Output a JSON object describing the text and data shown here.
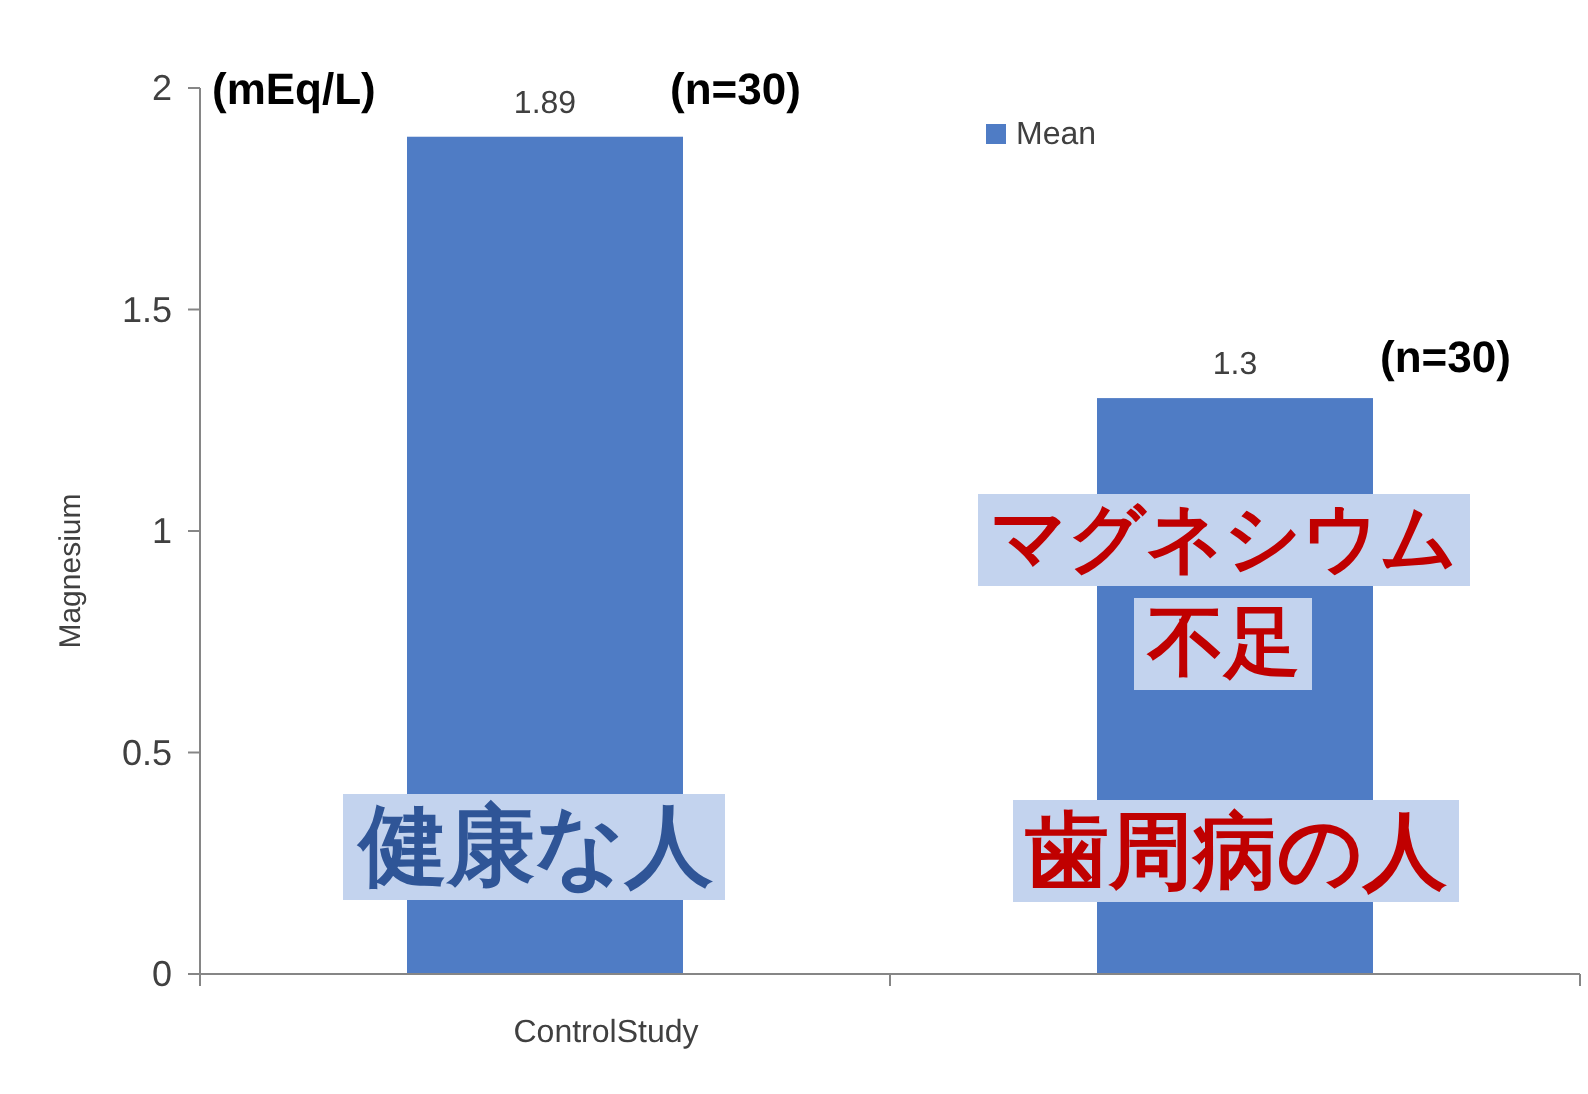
{
  "chart_data": {
    "type": "bar",
    "categories": [
      null,
      null
    ],
    "series": [
      {
        "name": "Mean",
        "color": "#4f7cc5",
        "values": [
          1.89,
          1.3
        ]
      }
    ],
    "xlabel": "ControlStudy",
    "ylabel": "Magnesium",
    "ylim": [
      0,
      2
    ],
    "yticks": [
      0,
      0.5,
      1,
      1.5,
      2
    ],
    "data_labels": true,
    "legend": "top right",
    "grid": false,
    "annotations": [
      "(mEq/L)",
      "(n=30)",
      "(n=30)",
      "マグネシウム",
      "不足",
      "健康な人",
      "歯周病の人"
    ]
  }
}
